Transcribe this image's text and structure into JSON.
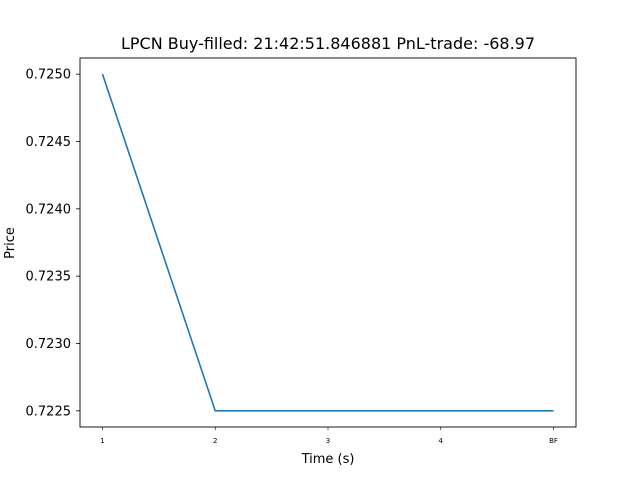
{
  "chart_data": {
    "type": "line",
    "title": "LPCN  Buy-filled:  21:42:51.846881  PnL-trade:  -68.97",
    "xlabel": "Time (s)",
    "ylabel": "Price",
    "categories": [
      "1",
      "2",
      "3",
      "4",
      "BF"
    ],
    "series": [
      {
        "values": [
          0.725,
          0.7225,
          0.7225,
          0.7225,
          0.7225
        ],
        "color": "#1f77b4"
      }
    ],
    "yticks": [
      "0.7225",
      "0.7230",
      "0.7235",
      "0.7240",
      "0.7245",
      "0.7250"
    ],
    "ytick_values": [
      0.7225,
      0.723,
      0.7235,
      0.724,
      0.7245,
      0.725
    ],
    "ylim": [
      0.72238,
      0.72512
    ],
    "grid": false,
    "legend": "none"
  }
}
